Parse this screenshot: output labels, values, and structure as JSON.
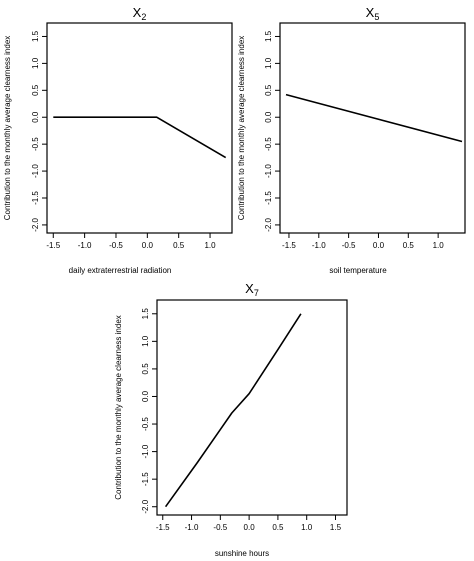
{
  "chart_data": [
    {
      "type": "line",
      "title": "X",
      "title_sub": "2",
      "xlabel": "daily extraterrestrial radiation",
      "ylabel": "Contribution to the monthly average clearness index",
      "xlim": [
        -1.6,
        1.35
      ],
      "ylim": [
        -2.15,
        1.75
      ],
      "x_ticks": [
        -1.5,
        -1.0,
        -0.5,
        0.0,
        0.5,
        1.0
      ],
      "x_tick_labels": [
        "-1.5",
        "-1.0",
        "-0.5",
        "0.0",
        "0.5",
        "1.0"
      ],
      "y_ticks": [
        -2.0,
        -1.5,
        -1.0,
        -0.5,
        0.0,
        0.5,
        1.0,
        1.5
      ],
      "y_tick_labels": [
        "-2.0",
        "-1.5",
        "-1.0",
        "-0.5",
        "0.0",
        "0.5",
        "1.0",
        "1.5"
      ],
      "x": [
        -1.5,
        0.15,
        1.25
      ],
      "y": [
        0.0,
        0.0,
        -0.75
      ],
      "grid": false
    },
    {
      "type": "line",
      "title": "X",
      "title_sub": "5",
      "xlabel": "soil temperature",
      "ylabel": "Contribution to the monthly average clearness index",
      "xlim": [
        -1.65,
        1.45
      ],
      "ylim": [
        -2.15,
        1.75
      ],
      "x_ticks": [
        -1.5,
        -1.0,
        -0.5,
        0.0,
        0.5,
        1.0
      ],
      "x_tick_labels": [
        "-1.5",
        "-1.0",
        "-0.5",
        "0.0",
        "0.5",
        "1.0"
      ],
      "y_ticks": [
        -2.0,
        -1.5,
        -1.0,
        -0.5,
        0.0,
        0.5,
        1.0,
        1.5
      ],
      "y_tick_labels": [
        "-2.0",
        "-1.5",
        "-1.0",
        "-0.5",
        "0.0",
        "0.5",
        "1.0",
        "1.5"
      ],
      "x": [
        -1.55,
        1.4
      ],
      "y": [
        0.42,
        -0.45
      ],
      "grid": false
    },
    {
      "type": "line",
      "title": "X",
      "title_sub": "7",
      "xlabel": "sunshine hours",
      "ylabel": "Contribution to the monthly average clearness index",
      "xlim": [
        -1.6,
        1.7
      ],
      "ylim": [
        -2.15,
        1.75
      ],
      "x_ticks": [
        -1.5,
        -1.0,
        -0.5,
        0.0,
        0.5,
        1.0,
        1.5
      ],
      "x_tick_labels": [
        "-1.5",
        "-1.0",
        "-0.5",
        "0.0",
        "0.5",
        "1.0",
        "1.5"
      ],
      "y_ticks": [
        -2.0,
        -1.5,
        -1.0,
        -0.5,
        0.0,
        0.5,
        1.0,
        1.5
      ],
      "y_tick_labels": [
        "-2.0",
        "-1.5",
        "-1.0",
        "-0.5",
        "0.0",
        "0.5",
        "1.0",
        "1.5"
      ],
      "x": [
        -1.45,
        -0.9,
        -0.5,
        -0.3,
        0.0,
        0.5,
        0.9
      ],
      "y": [
        -2.0,
        -1.2,
        -0.6,
        -0.3,
        0.05,
        0.85,
        1.5
      ],
      "grid": false
    }
  ]
}
